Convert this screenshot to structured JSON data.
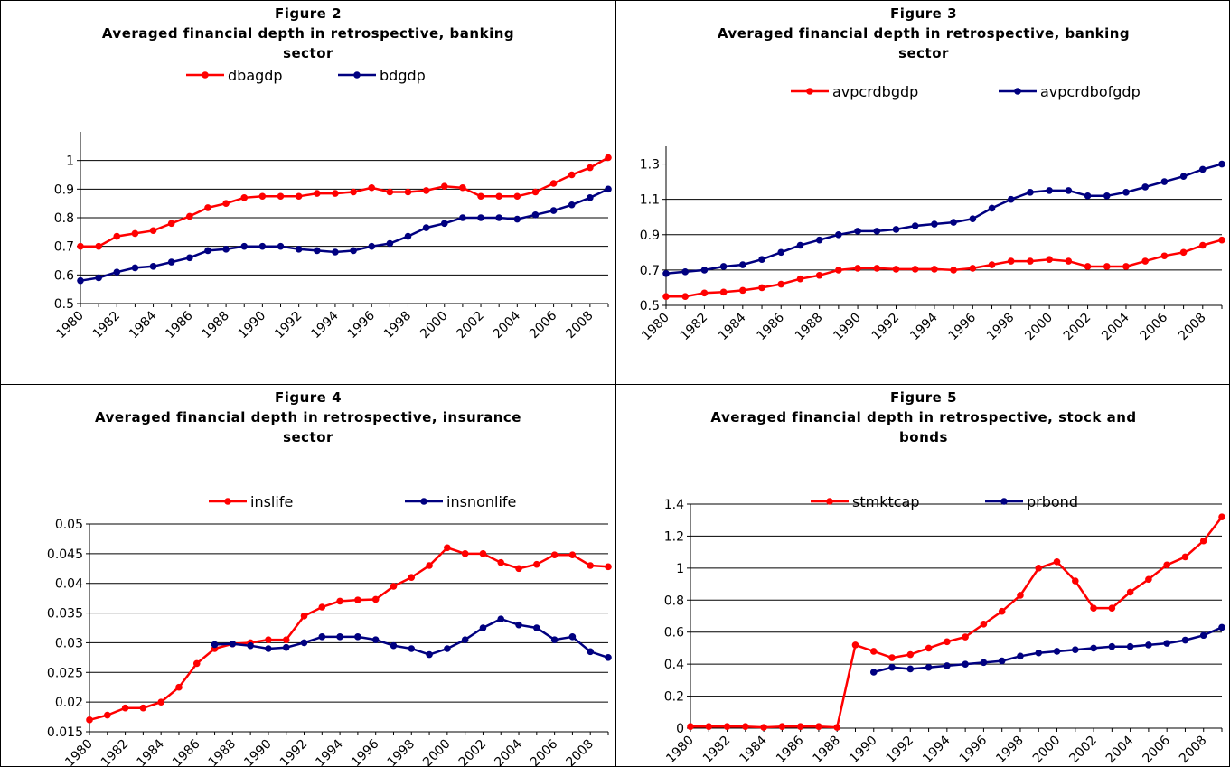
{
  "chart_data": [
    {
      "type": "line",
      "title": "Figure 2",
      "subtitle": "Averaged financial depth in retrospective, banking sector",
      "categories": [
        "1980",
        null,
        "1982",
        null,
        "1984",
        null,
        "1986",
        null,
        "1988",
        null,
        "1990",
        null,
        "1992",
        null,
        "1994",
        null,
        "1996",
        null,
        "1998",
        null,
        "2000",
        null,
        "2002",
        null,
        "2004",
        null,
        "2006",
        null,
        "2008",
        null
      ],
      "series": [
        {
          "name": "dbagdp",
          "color": "#ff0000",
          "values": [
            0.7,
            0.7,
            0.735,
            0.745,
            0.755,
            0.78,
            0.805,
            0.835,
            0.85,
            0.87,
            0.875,
            0.875,
            0.875,
            0.885,
            0.885,
            0.89,
            0.905,
            0.89,
            0.89,
            0.895,
            0.91,
            0.905,
            0.875,
            0.875,
            0.875,
            0.89,
            0.92,
            0.95,
            0.975,
            1.01
          ]
        },
        {
          "name": "bdgdp",
          "color": "#000080",
          "values": [
            0.58,
            0.59,
            0.61,
            0.625,
            0.63,
            0.645,
            0.66,
            0.685,
            0.69,
            0.7,
            0.7,
            0.7,
            0.69,
            0.685,
            0.68,
            0.685,
            0.7,
            0.71,
            0.735,
            0.765,
            0.78,
            0.8,
            0.8,
            0.8,
            0.795,
            0.81,
            0.825,
            0.845,
            0.87,
            0.9
          ]
        }
      ],
      "ylim": [
        0.5,
        1.1
      ],
      "yticks": [
        0.5,
        0.6,
        0.7,
        0.8,
        0.9,
        1
      ],
      "grid": true,
      "legend": "top"
    },
    {
      "type": "line",
      "title": "Figure 3",
      "subtitle": "Averaged financial depth in retrospective, banking sector",
      "categories": [
        "1980",
        null,
        "1982",
        null,
        "1984",
        null,
        "1986",
        null,
        "1988",
        null,
        "1990",
        null,
        "1992",
        null,
        "1994",
        null,
        "1996",
        null,
        "1998",
        null,
        "2000",
        null,
        "2002",
        null,
        "2004",
        null,
        "2006",
        null,
        "2008",
        null
      ],
      "series": [
        {
          "name": "avpcrdbgdp",
          "color": "#ff0000",
          "values": [
            0.55,
            0.55,
            0.57,
            0.575,
            0.585,
            0.6,
            0.62,
            0.65,
            0.67,
            0.7,
            0.71,
            0.71,
            0.705,
            0.705,
            0.705,
            0.7,
            0.71,
            0.73,
            0.75,
            0.75,
            0.76,
            0.75,
            0.72,
            0.72,
            0.72,
            0.75,
            0.78,
            0.8,
            0.84,
            0.87
          ]
        },
        {
          "name": "avpcrdbofgdp",
          "color": "#000080",
          "values": [
            0.68,
            0.69,
            0.7,
            0.72,
            0.73,
            0.76,
            0.8,
            0.84,
            0.87,
            0.9,
            0.92,
            0.92,
            0.93,
            0.95,
            0.96,
            0.97,
            0.99,
            1.05,
            1.1,
            1.14,
            1.15,
            1.15,
            1.12,
            1.12,
            1.14,
            1.17,
            1.2,
            1.23,
            1.27,
            1.3
          ]
        }
      ],
      "ylim": [
        0.5,
        1.4
      ],
      "yticks": [
        0.5,
        0.7,
        0.9,
        1.1,
        1.3
      ],
      "grid": true,
      "legend": "top"
    },
    {
      "type": "line",
      "title": "Figure 4",
      "subtitle": "Averaged financial depth in retrospective, insurance sector",
      "categories": [
        "1980",
        null,
        "1982",
        null,
        "1984",
        null,
        "1986",
        null,
        "1988",
        null,
        "1990",
        null,
        "1992",
        null,
        "1994",
        null,
        "1996",
        null,
        "1998",
        null,
        "2000",
        null,
        "2002",
        null,
        "2004",
        null,
        "2006",
        null,
        "2008",
        null
      ],
      "series": [
        {
          "name": "inslife",
          "color": "#ff0000",
          "values": [
            0.017,
            0.0178,
            0.019,
            0.019,
            0.02,
            0.0225,
            0.0265,
            0.029,
            0.0298,
            0.03,
            0.0305,
            0.0305,
            0.0345,
            0.036,
            0.037,
            0.0372,
            0.0373,
            0.0395,
            0.041,
            0.043,
            0.046,
            0.045,
            0.045,
            0.0435,
            0.0425,
            0.0432,
            0.0448,
            0.0448,
            0.043,
            0.0428
          ]
        },
        {
          "name": "insnonlife",
          "color": "#000080",
          "values": [
            null,
            null,
            null,
            null,
            null,
            null,
            null,
            0.0297,
            0.0298,
            0.0295,
            0.029,
            0.0292,
            0.03,
            0.031,
            0.031,
            0.031,
            0.0305,
            0.0295,
            0.029,
            0.028,
            0.029,
            0.0305,
            0.0325,
            0.034,
            0.033,
            0.0325,
            0.0305,
            0.031,
            0.0285,
            0.0275
          ]
        }
      ],
      "ylim": [
        0.015,
        0.05
      ],
      "yticks": [
        0.015,
        0.02,
        0.025,
        0.03,
        0.035,
        0.04,
        0.045,
        0.05
      ],
      "grid": true,
      "legend": "top"
    },
    {
      "type": "line",
      "title": "Figure 5",
      "subtitle": "Averaged financial depth in retrospective, stock and bonds",
      "categories": [
        "1980",
        null,
        "1982",
        null,
        "1984",
        null,
        "1986",
        null,
        "1988",
        null,
        "1990",
        null,
        "1992",
        null,
        "1994",
        null,
        "1996",
        null,
        "1998",
        null,
        "2000",
        null,
        "2002",
        null,
        "2004",
        null,
        "2006",
        null,
        "2008",
        null
      ],
      "series": [
        {
          "name": "stmktcap",
          "color": "#ff0000",
          "values": [
            0.01,
            0.01,
            0.01,
            0.01,
            0.005,
            0.01,
            0.01,
            0.01,
            0.005,
            0.52,
            0.48,
            0.44,
            0.46,
            0.5,
            0.54,
            0.57,
            0.65,
            0.73,
            0.83,
            1.0,
            1.04,
            0.92,
            0.75,
            0.75,
            0.85,
            0.93,
            1.02,
            1.07,
            1.17,
            1.32
          ]
        },
        {
          "name": "prbond",
          "color": "#000080",
          "values": [
            null,
            null,
            null,
            null,
            null,
            null,
            null,
            null,
            null,
            null,
            0.35,
            0.38,
            0.37,
            0.38,
            0.39,
            0.4,
            0.41,
            0.42,
            0.45,
            0.47,
            0.48,
            0.49,
            0.5,
            0.51,
            0.51,
            0.52,
            0.53,
            0.55,
            0.58,
            0.63
          ]
        }
      ],
      "ylim": [
        0,
        1.4
      ],
      "yticks": [
        0,
        0.2,
        0.4,
        0.6,
        0.8,
        1,
        1.2,
        1.4
      ],
      "grid": true,
      "legend": "top"
    }
  ]
}
